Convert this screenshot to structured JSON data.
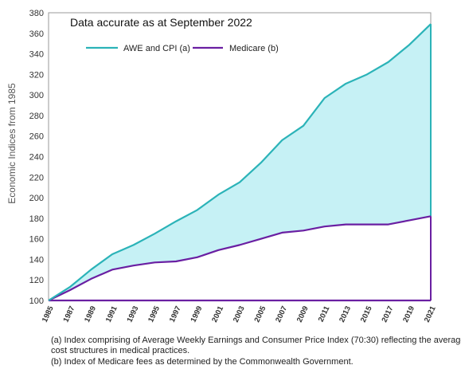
{
  "chart_data": {
    "type": "area",
    "title": "Data accurate as at September 2022",
    "ylabel": "Economic Indices from 1985",
    "xlabel": "",
    "ylim": [
      100,
      380
    ],
    "yticks": [
      100,
      120,
      140,
      160,
      180,
      200,
      220,
      240,
      260,
      280,
      300,
      320,
      340,
      360,
      380
    ],
    "xlim": [
      1985,
      2021
    ],
    "xticks": [
      1985,
      1987,
      1989,
      1991,
      1993,
      1995,
      1997,
      1999,
      2001,
      2003,
      2005,
      2007,
      2009,
      2011,
      2013,
      2015,
      2017,
      2019,
      2021
    ],
    "grid": false,
    "legend_position": "top-left",
    "series": [
      {
        "name": "AWE and CPI (a)",
        "color": "#2bb3b8",
        "fill": "#c6f1f5",
        "x": [
          1985,
          1987,
          1989,
          1991,
          1993,
          1995,
          1997,
          1999,
          2001,
          2003,
          2005,
          2007,
          2009,
          2011,
          2013,
          2015,
          2017,
          2019,
          2021
        ],
        "values": [
          100,
          113,
          130,
          145,
          154,
          165,
          177,
          188,
          203,
          215,
          234,
          256,
          270,
          297,
          311,
          320,
          332,
          349,
          369
        ]
      },
      {
        "name": "Medicare (b)",
        "color": "#6a1fa2",
        "x": [
          1985,
          1987,
          1989,
          1991,
          1993,
          1995,
          1997,
          1999,
          2001,
          2003,
          2005,
          2007,
          2009,
          2011,
          2013,
          2015,
          2017,
          2019,
          2021
        ],
        "values": [
          100,
          110,
          121,
          130,
          134,
          137,
          138,
          142,
          149,
          154,
          160,
          166,
          168,
          172,
          174,
          174,
          174,
          178,
          182
        ]
      }
    ],
    "notes": [
      "(a) Index comprising of Average Weekly Earnings and Consumer Price Index (70:30) reflecting the average",
      "cost structures in medical practices.",
      "(b) Index of Medicare fees as determined by the Commonwealth Government."
    ]
  }
}
